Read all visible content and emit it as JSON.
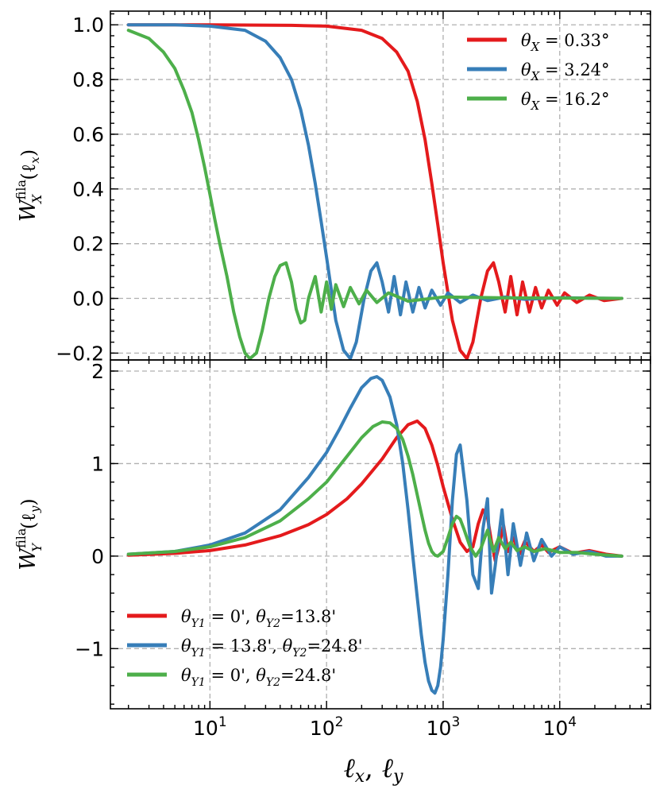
{
  "figure": {
    "xlabel_1": "ℓ",
    "xlabel_1_sub": "x",
    "xlabel_sep": ", ",
    "xlabel_2": "ℓ",
    "xlabel_2_sub": "y"
  },
  "colors": {
    "red": "#e41a1c",
    "blue": "#377eb8",
    "green": "#4daf4a"
  },
  "chart_data": [
    {
      "type": "line",
      "xscale": "log",
      "xlim": [
        1.4,
        60000
      ],
      "ylim": [
        -0.225,
        1.05
      ],
      "x_ticks": [
        {
          "base": "10",
          "exp": "1",
          "value": 10
        },
        {
          "base": "10",
          "exp": "2",
          "value": 100
        },
        {
          "base": "10",
          "exp": "3",
          "value": 1000
        },
        {
          "base": "10",
          "exp": "4",
          "value": 10000
        }
      ],
      "y_ticks": [
        {
          "label": "1.0",
          "value": 1.0
        },
        {
          "label": "0.8",
          "value": 0.8
        },
        {
          "label": "0.6",
          "value": 0.6
        },
        {
          "label": "0.4",
          "value": 0.4
        },
        {
          "label": "0.2",
          "value": 0.2
        },
        {
          "label": "0.0",
          "value": 0.0
        },
        {
          "label": "−0.2",
          "value": -0.2
        }
      ],
      "ylabel": {
        "main": "W",
        "sup": "fila",
        "sub": "X",
        "arg": "(ℓ",
        "arg_sub": "x",
        "close": ")"
      },
      "grid": true,
      "legend_loc": "upper right",
      "series": [
        {
          "name": "θ_X = 0.33°",
          "legend": {
            "sym": "θ",
            "sub": "X",
            "text": " = 0.33°"
          },
          "color": "#e41a1c",
          "x": [
            2,
            10,
            50,
            100,
            200,
            300,
            400,
            500,
            600,
            700,
            800,
            900,
            1000,
            1200,
            1400,
            1600,
            1800,
            2100,
            2400,
            2700,
            3000,
            3400,
            3800,
            4300,
            4800,
            5500,
            6200,
            7000,
            8000,
            9500,
            11000,
            14000,
            18000,
            24000,
            34000
          ],
          "y": [
            1.0,
            1.0,
            0.998,
            0.995,
            0.98,
            0.95,
            0.9,
            0.83,
            0.72,
            0.58,
            0.42,
            0.27,
            0.13,
            -0.08,
            -0.19,
            -0.22,
            -0.16,
            0.0,
            0.1,
            0.13,
            0.06,
            -0.05,
            0.08,
            -0.06,
            0.06,
            -0.05,
            0.04,
            -0.035,
            0.03,
            -0.025,
            0.02,
            -0.015,
            0.012,
            -0.008,
            0.0
          ]
        },
        {
          "name": "θ_X = 3.24°",
          "legend": {
            "sym": "θ",
            "sub": "X",
            "text": " = 3.24°"
          },
          "color": "#377eb8",
          "x": [
            2,
            5,
            10,
            20,
            30,
            40,
            50,
            60,
            70,
            80,
            90,
            100,
            120,
            140,
            160,
            180,
            210,
            240,
            270,
            300,
            340,
            380,
            430,
            480,
            550,
            620,
            700,
            800,
            950,
            1100,
            1400,
            1800,
            2400,
            3400,
            5000,
            10000,
            34000
          ],
          "y": [
            1.0,
            1.0,
            0.995,
            0.98,
            0.94,
            0.88,
            0.8,
            0.69,
            0.56,
            0.42,
            0.28,
            0.15,
            -0.08,
            -0.19,
            -0.22,
            -0.16,
            0.0,
            0.1,
            0.13,
            0.06,
            -0.05,
            0.08,
            -0.06,
            0.06,
            -0.05,
            0.04,
            -0.035,
            0.03,
            -0.025,
            0.02,
            -0.015,
            0.012,
            -0.008,
            0.005,
            -0.003,
            0.002,
            0.0
          ]
        },
        {
          "name": "θ_X = 16.2°",
          "legend": {
            "sym": "θ",
            "sub": "X",
            "text": " = 16.2°"
          },
          "color": "#4daf4a",
          "x": [
            2,
            3,
            4,
            5,
            6,
            7,
            8,
            9,
            10,
            11,
            12,
            14,
            16,
            18,
            20,
            22,
            25,
            28,
            32,
            36,
            40,
            45,
            50,
            55,
            60,
            65,
            70,
            80,
            90,
            100,
            110,
            120,
            140,
            160,
            190,
            220,
            270,
            340,
            500,
            1000,
            3000,
            34000
          ],
          "y": [
            0.98,
            0.95,
            0.9,
            0.84,
            0.76,
            0.68,
            0.58,
            0.48,
            0.38,
            0.29,
            0.21,
            0.08,
            -0.05,
            -0.14,
            -0.2,
            -0.22,
            -0.2,
            -0.12,
            0.0,
            0.08,
            0.12,
            0.13,
            0.06,
            -0.04,
            -0.09,
            -0.08,
            0.0,
            0.08,
            -0.05,
            0.06,
            -0.04,
            0.05,
            -0.03,
            0.04,
            -0.02,
            0.03,
            -0.015,
            0.02,
            -0.01,
            0.005,
            0.002,
            0.0
          ]
        }
      ]
    },
    {
      "type": "line",
      "xscale": "log",
      "xlim": [
        1.4,
        60000
      ],
      "ylim": [
        -1.65,
        2.12
      ],
      "x_ticks": [
        {
          "base": "10",
          "exp": "1",
          "value": 10
        },
        {
          "base": "10",
          "exp": "2",
          "value": 100
        },
        {
          "base": "10",
          "exp": "3",
          "value": 1000
        },
        {
          "base": "10",
          "exp": "4",
          "value": 10000
        }
      ],
      "y_ticks": [
        {
          "label": "2",
          "value": 2
        },
        {
          "label": "1",
          "value": 1
        },
        {
          "label": "0",
          "value": 0
        },
        {
          "label": "−1",
          "value": -1
        }
      ],
      "ylabel": {
        "main": "W",
        "sup": "fila",
        "sub": "Y",
        "arg": "(ℓ",
        "arg_sub": "y",
        "close": ")"
      },
      "grid": true,
      "legend_loc": "lower left",
      "series": [
        {
          "name": "θ_Y1 = 0', θ_Y2=13.8'",
          "legend": {
            "s1": "θ",
            "sub1": "Y1",
            "t1": " = 0', ",
            "s2": "θ",
            "sub2": "Y2",
            "t2": "=13.8'"
          },
          "color": "#e41a1c",
          "x": [
            2,
            5,
            10,
            20,
            40,
            70,
            100,
            150,
            200,
            300,
            400,
            500,
            600,
            700,
            800,
            900,
            1000,
            1200,
            1400,
            1600,
            1800,
            2000,
            2200,
            2400,
            2600,
            2800,
            3000,
            3300,
            3600,
            4000,
            4500,
            5000,
            6000,
            7000,
            8000,
            10000,
            13000,
            18000,
            25000,
            34000
          ],
          "y": [
            0.01,
            0.03,
            0.06,
            0.12,
            0.22,
            0.34,
            0.45,
            0.62,
            0.78,
            1.05,
            1.28,
            1.42,
            1.46,
            1.38,
            1.2,
            0.98,
            0.75,
            0.4,
            0.15,
            0.05,
            0.1,
            0.35,
            0.5,
            0.42,
            0.15,
            -0.05,
            0.1,
            0.33,
            0.05,
            0.2,
            0.02,
            0.16,
            0.05,
            0.12,
            0.04,
            0.1,
            0.03,
            0.06,
            0.02,
            0.0
          ]
        },
        {
          "name": "θ_Y1 = 13.8', θ_Y2=24.8'",
          "legend": {
            "s1": "θ",
            "sub1": "Y1",
            "t1": " = 13.8', ",
            "s2": "θ",
            "sub2": "Y2",
            "t2": "=24.8'"
          },
          "color": "#377eb8",
          "x": [
            2,
            5,
            10,
            20,
            40,
            70,
            100,
            130,
            160,
            200,
            240,
            270,
            300,
            350,
            400,
            450,
            500,
            550,
            600,
            650,
            700,
            750,
            800,
            850,
            900,
            950,
            1000,
            1100,
            1200,
            1300,
            1400,
            1600,
            1800,
            2000,
            2200,
            2400,
            2600,
            2800,
            3200,
            3600,
            4000,
            4600,
            5200,
            6000,
            7000,
            8500,
            10000,
            13000,
            18000,
            25000,
            34000
          ],
          "y": [
            0.02,
            0.05,
            0.12,
            0.25,
            0.5,
            0.85,
            1.12,
            1.38,
            1.6,
            1.82,
            1.92,
            1.94,
            1.9,
            1.72,
            1.42,
            1.0,
            0.5,
            0.0,
            -0.45,
            -0.85,
            -1.15,
            -1.35,
            -1.45,
            -1.48,
            -1.4,
            -1.2,
            -0.9,
            -0.2,
            0.6,
            1.1,
            1.2,
            0.6,
            -0.2,
            -0.35,
            0.3,
            0.62,
            -0.4,
            -0.1,
            0.5,
            -0.2,
            0.35,
            -0.1,
            0.25,
            -0.05,
            0.18,
            0.0,
            0.1,
            0.02,
            0.05,
            0.0,
            0.0
          ]
        },
        {
          "name": "θ_Y1 = 0', θ_Y2=24.8'",
          "legend": {
            "s1": "θ",
            "sub1": "Y1",
            "t1": " = 0', ",
            "s2": "θ",
            "sub2": "Y2",
            "t2": "=24.8'"
          },
          "color": "#4daf4a",
          "x": [
            2,
            5,
            10,
            20,
            40,
            70,
            100,
            150,
            200,
            250,
            300,
            350,
            400,
            450,
            500,
            550,
            600,
            650,
            700,
            750,
            800,
            850,
            900,
            1000,
            1100,
            1200,
            1300,
            1400,
            1500,
            1700,
            1900,
            2100,
            2400,
            2700,
            3000,
            3400,
            3800,
            4300,
            5000,
            6000,
            7500,
            10000,
            14000,
            20000,
            34000
          ],
          "y": [
            0.02,
            0.05,
            0.1,
            0.2,
            0.38,
            0.62,
            0.8,
            1.08,
            1.28,
            1.4,
            1.45,
            1.44,
            1.38,
            1.26,
            1.08,
            0.88,
            0.66,
            0.46,
            0.28,
            0.14,
            0.05,
            0.01,
            0.0,
            0.05,
            0.2,
            0.35,
            0.43,
            0.4,
            0.3,
            0.1,
            0.0,
            0.08,
            0.28,
            0.05,
            0.2,
            0.08,
            0.15,
            0.06,
            0.1,
            0.05,
            0.08,
            0.04,
            0.04,
            0.02,
            0.0
          ]
        }
      ]
    }
  ]
}
